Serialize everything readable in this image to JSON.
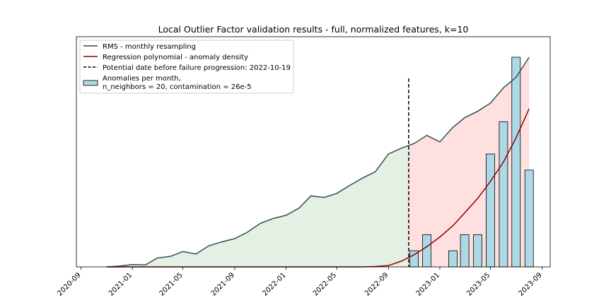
{
  "chart_data": {
    "type": "line",
    "title": "Local Outlier Factor validation results - full, normalized features, k=10",
    "xlabel": "",
    "ylabel": "",
    "x_ticks": [
      "2020-09",
      "2021-01",
      "2021-05",
      "2021-09",
      "2022-01",
      "2022-05",
      "2022-09",
      "2023-01",
      "2023-05",
      "2023-09"
    ],
    "x_range": [
      "2020-08-21",
      "2023-09-20"
    ],
    "y_range": [
      0,
      13
    ],
    "y_ticks_visible": false,
    "grid": false,
    "legend_position": "top-left",
    "legend": {
      "rms": "RMS - monthly resampling",
      "regression": "Regression polynomial - anomaly density",
      "vline": "Potential date before failure progression: 2022-10-19",
      "bars_line1": "Anomalies per month,",
      "bars_line2": "n_neighbors = 20, contamination = 26e-5"
    },
    "rms_series": {
      "x": [
        "2020-11-01",
        "2020-12-01",
        "2021-01-01",
        "2021-02-01",
        "2021-03-01",
        "2021-04-01",
        "2021-05-01",
        "2021-06-01",
        "2021-07-01",
        "2021-08-01",
        "2021-09-01",
        "2021-10-01",
        "2021-11-01",
        "2021-12-01",
        "2022-01-01",
        "2022-02-01",
        "2022-03-01",
        "2022-04-01",
        "2022-05-01",
        "2022-06-01",
        "2022-07-01",
        "2022-08-01",
        "2022-09-01",
        "2022-10-01",
        "2022-11-01",
        "2022-12-01",
        "2023-01-01",
        "2023-02-01",
        "2023-03-01",
        "2023-04-01",
        "2023-05-01",
        "2023-06-01",
        "2023-07-01",
        "2023-08-01"
      ],
      "y": [
        0.0,
        0.05,
        0.15,
        0.12,
        0.55,
        0.65,
        0.95,
        0.8,
        1.3,
        1.55,
        1.75,
        2.15,
        2.7,
        3.0,
        3.2,
        3.65,
        4.4,
        4.3,
        4.55,
        5.05,
        5.5,
        5.9,
        7.0,
        7.35,
        7.65,
        8.15,
        7.75,
        8.65,
        9.25,
        9.65,
        10.15,
        11.1,
        11.75,
        13.0
      ]
    },
    "regression_series": {
      "x": [
        "2020-11-01",
        "2021-03-01",
        "2021-07-01",
        "2021-11-01",
        "2022-03-01",
        "2022-07-01",
        "2022-08-01",
        "2022-09-01",
        "2022-10-01",
        "2022-11-01",
        "2022-12-01",
        "2023-01-01",
        "2023-02-01",
        "2023-03-01",
        "2023-04-01",
        "2023-05-01",
        "2023-06-01",
        "2023-07-01",
        "2023-08-01"
      ],
      "y": [
        0.0,
        0.0,
        0.0,
        0.0,
        0.0,
        0.0,
        0.02,
        0.08,
        0.35,
        0.75,
        1.25,
        1.85,
        2.55,
        3.35,
        4.25,
        5.3,
        6.5,
        8.0,
        9.8
      ]
    },
    "vline_date": "2022-10-19",
    "bars": {
      "x": [
        "2022-11-01",
        "2022-12-01",
        "2023-02-01",
        "2023-03-01",
        "2023-04-01",
        "2023-05-01",
        "2023-06-01",
        "2023-07-01",
        "2023-08-01"
      ],
      "values": [
        1,
        2,
        1,
        2,
        2,
        7,
        9,
        13,
        6
      ]
    },
    "colors": {
      "rms_line": "#2f4f4f",
      "regression_line": "#8b0000",
      "vline": "#000000",
      "bar_fill": "#add8e6",
      "bar_edge": "#000000",
      "green_fill": "#e3f0e3",
      "red_fill": "#ffe0e0"
    }
  }
}
